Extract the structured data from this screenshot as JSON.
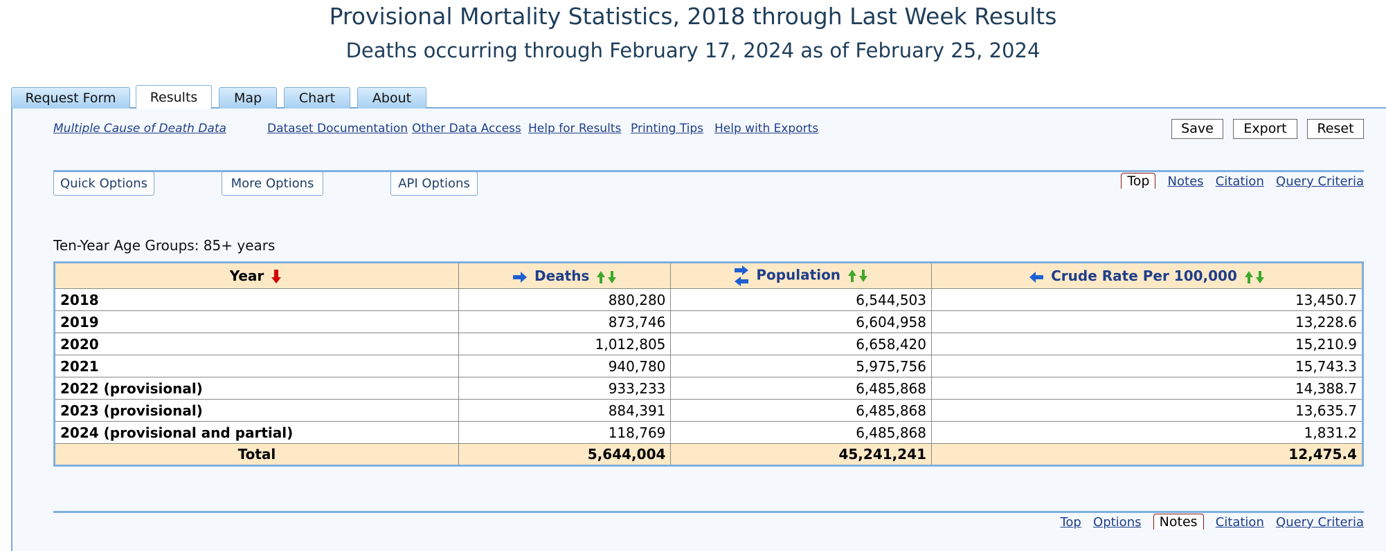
{
  "header": {
    "title": "Provisional Mortality Statistics, 2018 through Last Week Results",
    "subtitle": "Deaths occurring through February 17, 2024 as of February 25, 2024"
  },
  "tabs": [
    {
      "label": "Request Form"
    },
    {
      "label": "Results",
      "active": true
    },
    {
      "label": "Map"
    },
    {
      "label": "Chart"
    },
    {
      "label": "About"
    }
  ],
  "links": {
    "dataset": "Multiple Cause of Death Data",
    "documentation": "Dataset Documentation",
    "other_access": "Other Data Access",
    "help_results": "Help for Results",
    "printing": "Printing Tips",
    "help_exports": "Help with Exports"
  },
  "actions": {
    "save": "Save",
    "export": "Export",
    "reset": "Reset"
  },
  "options": {
    "quick": "Quick Options",
    "more": "More Options",
    "api": "API Options"
  },
  "top_nav": {
    "top": "Top",
    "notes": "Notes",
    "citation": "Citation",
    "query": "Query Criteria"
  },
  "bottom_nav": {
    "top": "Top",
    "options": "Options",
    "notes": "Notes",
    "citation": "Citation",
    "query": "Query Criteria"
  },
  "group_label": "Ten-Year Age Groups: 85+ years",
  "table": {
    "columns": {
      "year": "Year",
      "deaths": "Deaths",
      "population": "Population",
      "crude_rate": "Crude Rate Per 100,000"
    },
    "rows": [
      {
        "year": "2018",
        "deaths": "880,280",
        "population": "6,544,503",
        "rate": "13,450.7"
      },
      {
        "year": "2019",
        "deaths": "873,746",
        "population": "6,604,958",
        "rate": "13,228.6"
      },
      {
        "year": "2020",
        "deaths": "1,012,805",
        "population": "6,658,420",
        "rate": "15,210.9"
      },
      {
        "year": "2021",
        "deaths": "940,780",
        "population": "5,975,756",
        "rate": "15,743.3"
      },
      {
        "year": "2022 (provisional)",
        "deaths": "933,233",
        "population": "6,485,868",
        "rate": "14,388.7"
      },
      {
        "year": "2023 (provisional)",
        "deaths": "884,391",
        "population": "6,485,868",
        "rate": "13,635.7"
      },
      {
        "year": "2024 (provisional and partial)",
        "deaths": "118,769",
        "population": "6,485,868",
        "rate": "1,831.2"
      }
    ],
    "total": {
      "label": "Total",
      "deaths": "5,644,004",
      "population": "45,241,241",
      "rate": "12,475.4"
    }
  },
  "colors": {
    "accent": "#7fb0e0",
    "header_fill": "#fde9c6",
    "title": "#1f3e5a",
    "link": "#1f3e8a",
    "sort_down": "#d40000",
    "sort_both": "#3fa82a",
    "arrow": "#1f5fd4"
  },
  "icons": [
    "sort-desc-icon",
    "right-arrow-icon",
    "sort-both-icon",
    "swap-arrows-icon",
    "left-arrow-icon"
  ]
}
